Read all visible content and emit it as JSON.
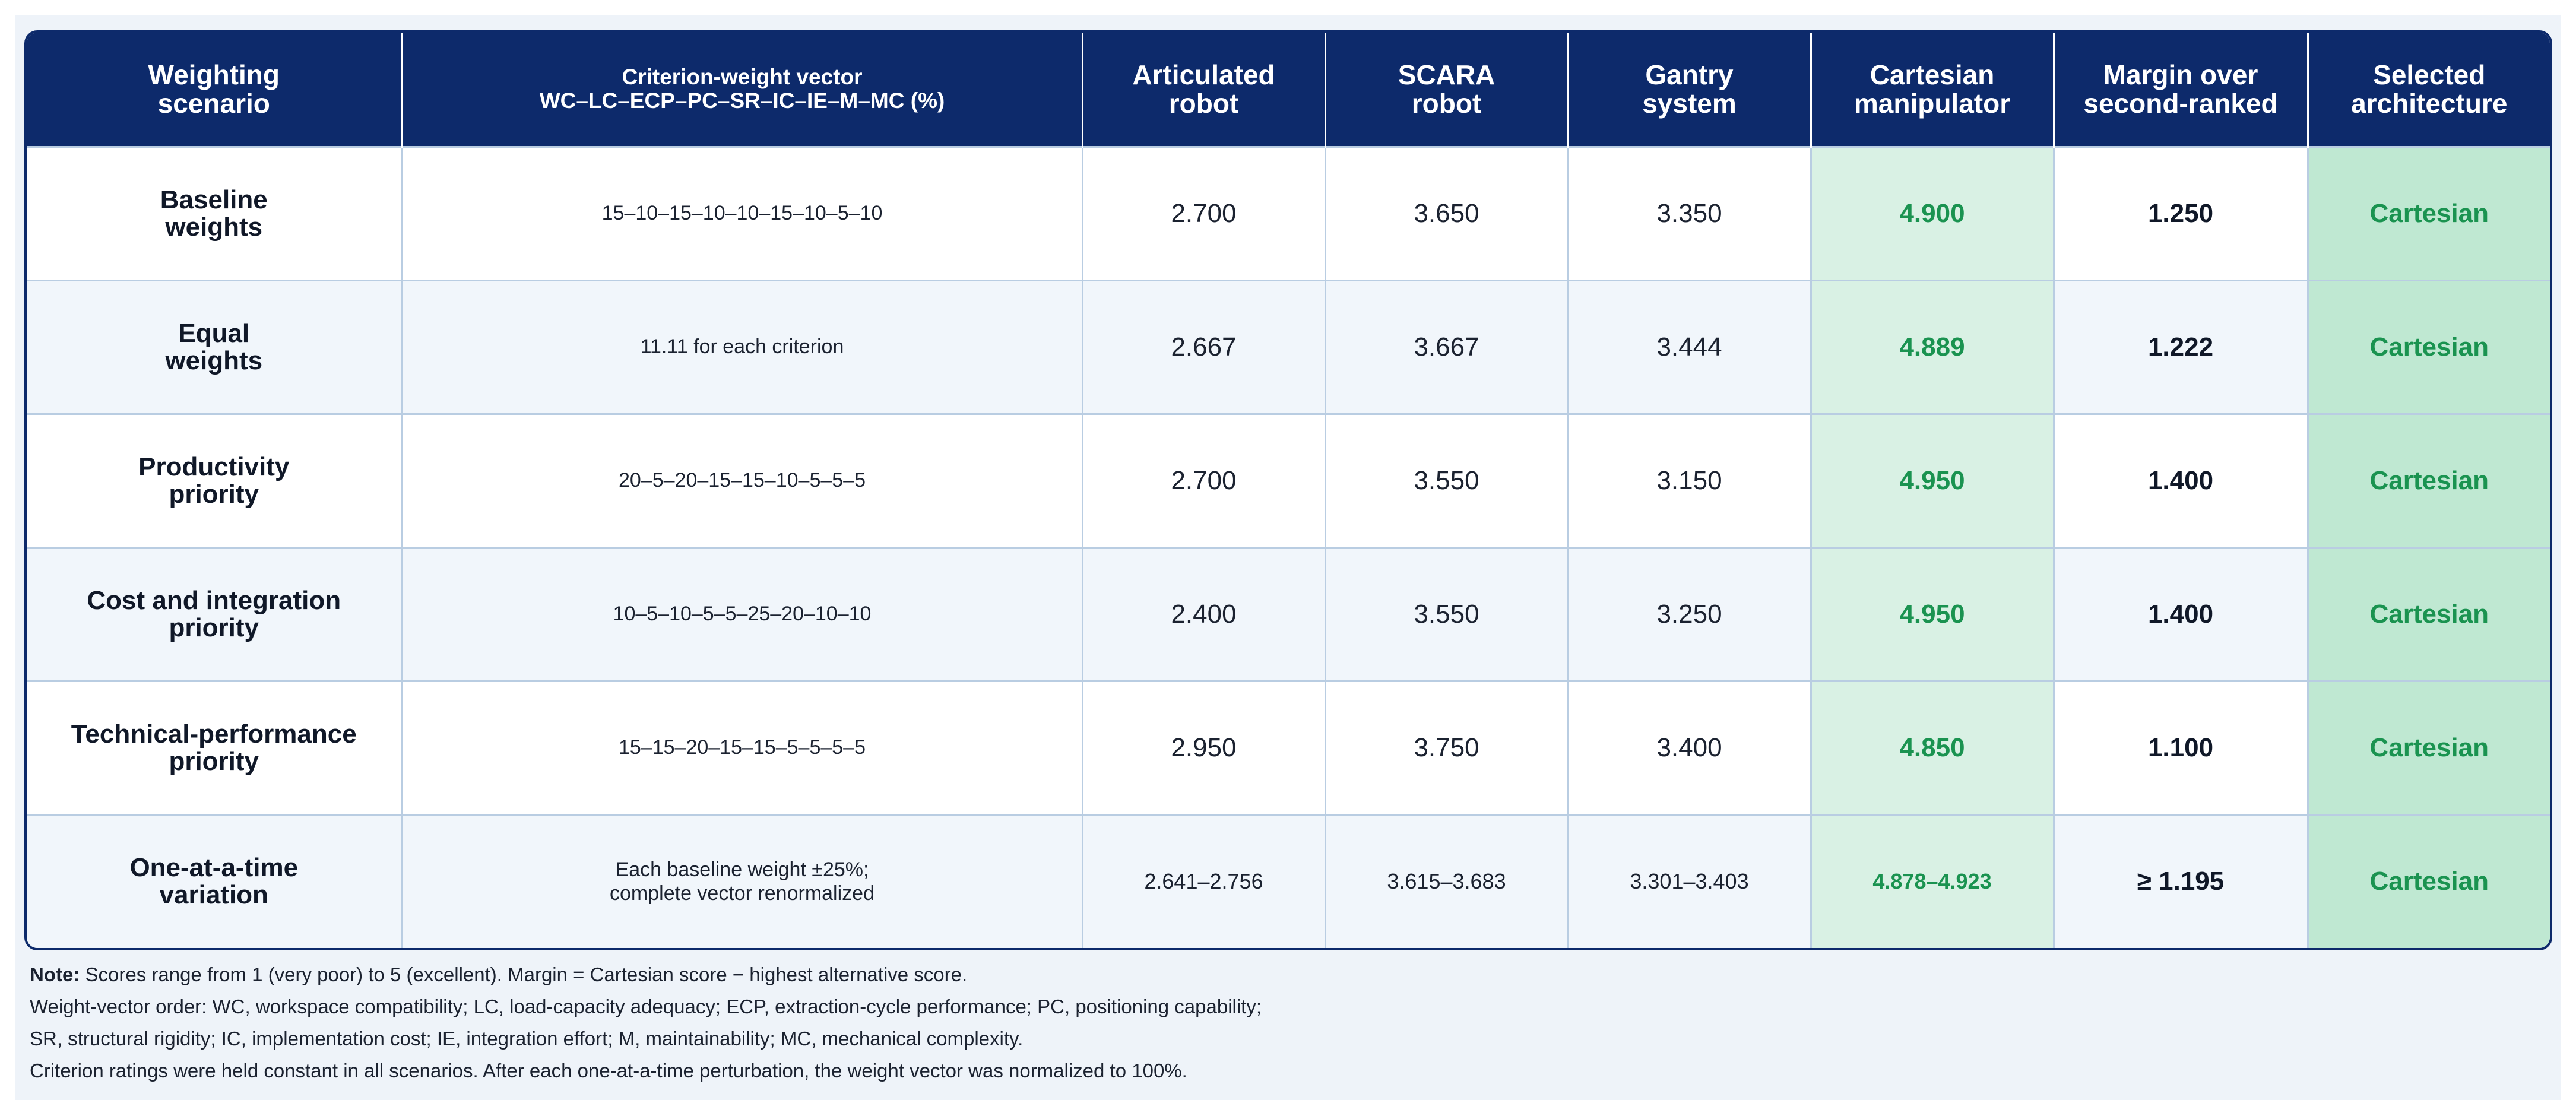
{
  "headers": {
    "scenario": [
      "Weighting",
      "scenario"
    ],
    "vector": [
      "Criterion-weight vector",
      "WC–LC–ECP–PC–SR–IC–IE–M–MC (%)"
    ],
    "articulated": [
      "Articulated",
      "robot"
    ],
    "scara": [
      "SCARA",
      "robot"
    ],
    "gantry": [
      "Gantry",
      "system"
    ],
    "cartesian": [
      "Cartesian",
      "manipulator"
    ],
    "margin": [
      "Margin over",
      "second-ranked"
    ],
    "selected": [
      "Selected",
      "architecture"
    ]
  },
  "rows": [
    {
      "scenario": [
        "Baseline",
        "weights"
      ],
      "vector": [
        "15–10–15–10–10–15–10–5–10"
      ],
      "articulated": "2.700",
      "scara": "3.650",
      "gantry": "3.350",
      "cartesian": "4.900",
      "margin": "1.250",
      "selected": "Cartesian"
    },
    {
      "scenario": [
        "Equal",
        "weights"
      ],
      "vector": [
        "11.11 for each criterion"
      ],
      "articulated": "2.667",
      "scara": "3.667",
      "gantry": "3.444",
      "cartesian": "4.889",
      "margin": "1.222",
      "selected": "Cartesian"
    },
    {
      "scenario": [
        "Productivity",
        "priority"
      ],
      "vector": [
        "20–5–20–15–15–10–5–5–5"
      ],
      "articulated": "2.700",
      "scara": "3.550",
      "gantry": "3.150",
      "cartesian": "4.950",
      "margin": "1.400",
      "selected": "Cartesian"
    },
    {
      "scenario": [
        "Cost and integration",
        "priority"
      ],
      "vector": [
        "10–5–10–5–5–25–20–10–10"
      ],
      "articulated": "2.400",
      "scara": "3.550",
      "gantry": "3.250",
      "cartesian": "4.950",
      "margin": "1.400",
      "selected": "Cartesian"
    },
    {
      "scenario": [
        "Technical-performance",
        "priority"
      ],
      "vector": [
        "15–15–20–15–15–5–5–5–5"
      ],
      "articulated": "2.950",
      "scara": "3.750",
      "gantry": "3.400",
      "cartesian": "4.850",
      "margin": "1.100",
      "selected": "Cartesian"
    },
    {
      "scenario": [
        "One-at-a-time",
        "variation"
      ],
      "vector": [
        "Each baseline weight ±25%;",
        "complete vector renormalized"
      ],
      "articulated": "2.641–2.756",
      "scara": "3.615–3.683",
      "gantry": "3.301–3.403",
      "cartesian": "4.878–4.923",
      "margin": "≥ 1.195",
      "selected": "Cartesian"
    }
  ],
  "notes": {
    "line1_label": "Note:",
    "line1_text": " Scores range from 1 (very poor) to 5 (excellent). Margin = Cartesian score − highest alternative score.",
    "line2": "Weight-vector order: WC, workspace compatibility; LC, load-capacity adequacy; ECP, extraction-cycle performance; PC, positioning capability;",
    "line3": "SR, structural rigidity; IC, implementation cost; IE, integration effort; M, maintainability; MC, mechanical complexity.",
    "line4": "Criterion ratings were held constant in all scenarios. After each one-at-a-time perturbation, the weight vector was normalized to 100%."
  },
  "colors": {
    "header_bg": "#0d2a6b",
    "cartesian_bg": "#d9f1e4",
    "selected_bg": "#bfe8d2",
    "accent_green": "#1a9350",
    "alt_row_bg": "#f1f6fb"
  }
}
